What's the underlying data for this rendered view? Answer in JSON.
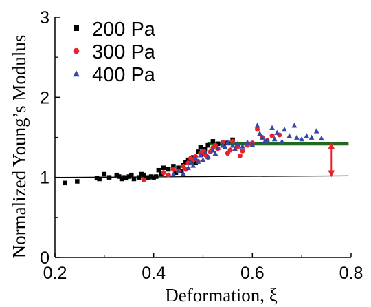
{
  "chart_data": {
    "type": "scatter",
    "xlabel": "Deformation, ξ",
    "ylabel": "Normalized Young’s Modulus",
    "xlim": [
      0.2,
      0.8
    ],
    "ylim": [
      0,
      3
    ],
    "x_ticks": [
      "0.2",
      "0.4",
      "0.6",
      "0.8"
    ],
    "y_ticks": [
      "0",
      "1",
      "2",
      "3"
    ],
    "legend_position": "top-left",
    "series": [
      {
        "name": "200 Pa",
        "marker": "square",
        "color": "#000000",
        "points": [
          [
            0.22,
            0.93
          ],
          [
            0.245,
            0.95
          ],
          [
            0.285,
            0.99
          ],
          [
            0.29,
            0.98
          ],
          [
            0.3,
            1.04
          ],
          [
            0.31,
            1.0
          ],
          [
            0.325,
            1.03
          ],
          [
            0.33,
            1.01
          ],
          [
            0.335,
            0.98
          ],
          [
            0.34,
            1.0
          ],
          [
            0.345,
            0.99
          ],
          [
            0.35,
            1.01
          ],
          [
            0.355,
            1.03
          ],
          [
            0.36,
            0.98
          ],
          [
            0.37,
            1.0
          ],
          [
            0.375,
            1.04
          ],
          [
            0.38,
            1.03
          ],
          [
            0.385,
            0.99
          ],
          [
            0.39,
            1.0
          ],
          [
            0.395,
            1.01
          ],
          [
            0.4,
            1.0
          ],
          [
            0.405,
            1.01
          ],
          [
            0.41,
            1.09
          ],
          [
            0.415,
            1.05
          ],
          [
            0.42,
            1.12
          ],
          [
            0.43,
            1.1
          ],
          [
            0.44,
            1.14
          ],
          [
            0.445,
            1.06
          ],
          [
            0.45,
            1.12
          ],
          [
            0.455,
            1.08
          ],
          [
            0.46,
            1.15
          ],
          [
            0.465,
            1.19
          ],
          [
            0.47,
            1.22
          ],
          [
            0.475,
            1.2
          ],
          [
            0.48,
            1.25
          ],
          [
            0.485,
            1.18
          ],
          [
            0.49,
            1.32
          ],
          [
            0.495,
            1.38
          ],
          [
            0.5,
            1.3
          ],
          [
            0.505,
            1.35
          ],
          [
            0.51,
            1.4
          ],
          [
            0.52,
            1.45
          ],
          [
            0.53,
            1.42
          ],
          [
            0.54,
            1.4
          ],
          [
            0.55,
            1.43
          ],
          [
            0.56,
            1.47
          ]
        ]
      },
      {
        "name": "300 Pa",
        "marker": "circle",
        "color": "#e8242a",
        "points": [
          [
            0.38,
            0.97
          ],
          [
            0.42,
            1.06
          ],
          [
            0.43,
            1.03
          ],
          [
            0.44,
            1.1
          ],
          [
            0.45,
            1.08
          ],
          [
            0.46,
            1.14
          ],
          [
            0.465,
            1.1
          ],
          [
            0.47,
            1.18
          ],
          [
            0.475,
            1.24
          ],
          [
            0.48,
            1.22
          ],
          [
            0.485,
            1.26
          ],
          [
            0.49,
            1.2
          ],
          [
            0.495,
            1.3
          ],
          [
            0.5,
            1.33
          ],
          [
            0.505,
            1.28
          ],
          [
            0.51,
            1.25
          ],
          [
            0.515,
            1.32
          ],
          [
            0.52,
            1.37
          ],
          [
            0.525,
            1.4
          ],
          [
            0.53,
            1.36
          ],
          [
            0.54,
            1.44
          ],
          [
            0.55,
            1.3
          ],
          [
            0.555,
            1.34
          ],
          [
            0.56,
            1.45
          ],
          [
            0.57,
            1.38
          ],
          [
            0.575,
            1.27
          ],
          [
            0.58,
            1.33
          ],
          [
            0.59,
            1.4
          ],
          [
            0.6,
            1.43
          ],
          [
            0.61,
            1.6
          ],
          [
            0.62,
            1.5
          ],
          [
            0.63,
            1.46
          ],
          [
            0.64,
            1.52
          ],
          [
            0.655,
            1.53
          ]
        ]
      },
      {
        "name": "400 Pa",
        "marker": "triangle",
        "color": "#3846a8",
        "points": [
          [
            0.44,
            1.04
          ],
          [
            0.45,
            1.08
          ],
          [
            0.46,
            1.05
          ],
          [
            0.47,
            1.12
          ],
          [
            0.475,
            1.18
          ],
          [
            0.48,
            1.15
          ],
          [
            0.485,
            1.24
          ],
          [
            0.49,
            1.2
          ],
          [
            0.495,
            1.28
          ],
          [
            0.5,
            1.22
          ],
          [
            0.505,
            1.32
          ],
          [
            0.51,
            1.26
          ],
          [
            0.52,
            1.34
          ],
          [
            0.525,
            1.3
          ],
          [
            0.53,
            1.37
          ],
          [
            0.54,
            1.41
          ],
          [
            0.545,
            1.38
          ],
          [
            0.55,
            1.44
          ],
          [
            0.56,
            1.4
          ],
          [
            0.565,
            1.36
          ],
          [
            0.57,
            1.42
          ],
          [
            0.58,
            1.39
          ],
          [
            0.59,
            1.44
          ],
          [
            0.6,
            1.41
          ],
          [
            0.61,
            1.65
          ],
          [
            0.615,
            1.55
          ],
          [
            0.62,
            1.5
          ],
          [
            0.625,
            1.45
          ],
          [
            0.63,
            1.47
          ],
          [
            0.64,
            1.62
          ],
          [
            0.645,
            1.48
          ],
          [
            0.65,
            1.56
          ],
          [
            0.66,
            1.45
          ],
          [
            0.665,
            1.6
          ],
          [
            0.675,
            1.52
          ],
          [
            0.685,
            1.65
          ],
          [
            0.69,
            1.5
          ],
          [
            0.7,
            1.48
          ],
          [
            0.71,
            1.52
          ],
          [
            0.72,
            1.5
          ],
          [
            0.73,
            1.58
          ],
          [
            0.74,
            1.49
          ]
        ]
      }
    ],
    "lines": [
      {
        "name": "baseline",
        "color": "#000000",
        "points": [
          [
            0.21,
            1.0
          ],
          [
            0.795,
            1.02
          ]
        ]
      },
      {
        "name": "plateau",
        "color": "#1a6b21",
        "points": [
          [
            0.51,
            1.42
          ],
          [
            0.795,
            1.42
          ]
        ]
      }
    ],
    "arrow": {
      "color": "#e8242a",
      "x": 0.76,
      "y_from": 1.02,
      "y_to": 1.42
    }
  }
}
